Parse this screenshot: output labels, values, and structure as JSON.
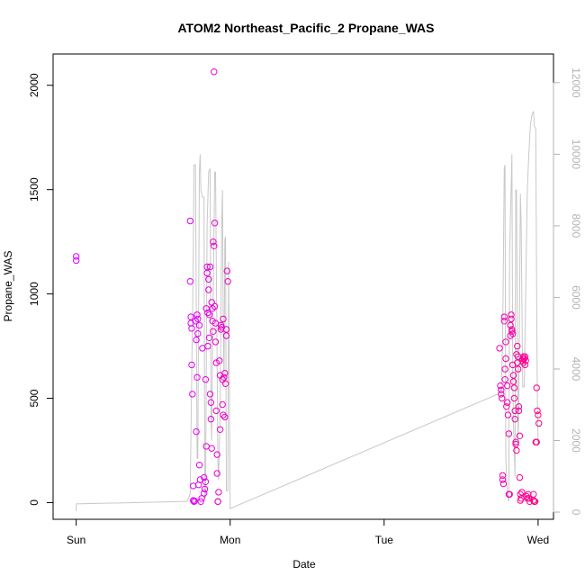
{
  "chart_data": {
    "type": "scatter",
    "title": "ATOM2 Northeast_Pacific_2 Propane_WAS",
    "xlabel": "Date",
    "ylabel": "Propane_WAS",
    "x_ticks": [
      "Sun",
      "Mon",
      "Tue",
      "Wed"
    ],
    "x_range_days": [
      -0.15,
      3.1
    ],
    "y_left": {
      "range": [
        -80,
        2150
      ],
      "ticks": [
        0,
        500,
        1000,
        1500,
        2000
      ]
    },
    "y_right": {
      "range": [
        -200,
        12800
      ],
      "ticks": [
        0,
        2000,
        4000,
        6000,
        8000,
        10000,
        12000
      ],
      "color": "#b3b3b3"
    },
    "series": [
      {
        "kind": "points",
        "axis": "left",
        "color_start": "#e000ff",
        "color_end": "#ff0080",
        "points": [
          [
            0.0,
            1180
          ],
          [
            0.0,
            1160
          ],
          [
            0.74,
            1350
          ],
          [
            0.74,
            1060
          ],
          [
            0.745,
            890
          ],
          [
            0.745,
            860
          ],
          [
            0.75,
            835
          ],
          [
            0.75,
            660
          ],
          [
            0.755,
            520
          ],
          [
            0.76,
            80
          ],
          [
            0.76,
            10
          ],
          [
            0.765,
            5
          ],
          [
            0.77,
            8
          ],
          [
            0.775,
            870
          ],
          [
            0.78,
            340
          ],
          [
            0.78,
            780
          ],
          [
            0.785,
            900
          ],
          [
            0.785,
            600
          ],
          [
            0.79,
            880
          ],
          [
            0.79,
            810
          ],
          [
            0.795,
            85
          ],
          [
            0.8,
            180
          ],
          [
            0.8,
            850
          ],
          [
            0.805,
            110
          ],
          [
            0.81,
            5
          ],
          [
            0.815,
            20
          ],
          [
            0.82,
            740
          ],
          [
            0.83,
            120
          ],
          [
            0.83,
            45
          ],
          [
            0.835,
            65
          ],
          [
            0.84,
            590
          ],
          [
            0.84,
            100
          ],
          [
            0.845,
            930
          ],
          [
            0.845,
            270
          ],
          [
            0.85,
            1130
          ],
          [
            0.85,
            1100
          ],
          [
            0.855,
            910
          ],
          [
            0.855,
            750
          ],
          [
            0.86,
            1070
          ],
          [
            0.86,
            1020
          ],
          [
            0.865,
            900
          ],
          [
            0.865,
            790
          ],
          [
            0.87,
            1130
          ],
          [
            0.87,
            520
          ],
          [
            0.875,
            400
          ],
          [
            0.875,
            480
          ],
          [
            0.88,
            260
          ],
          [
            0.88,
            960
          ],
          [
            0.885,
            930
          ],
          [
            0.885,
            870
          ],
          [
            0.89,
            820
          ],
          [
            0.89,
            1250
          ],
          [
            0.895,
            1230
          ],
          [
            0.895,
            2065
          ],
          [
            0.9,
            1340
          ],
          [
            0.9,
            940
          ],
          [
            0.905,
            860
          ],
          [
            0.905,
            770
          ],
          [
            0.91,
            670
          ],
          [
            0.91,
            440
          ],
          [
            0.915,
            230
          ],
          [
            0.915,
            140
          ],
          [
            0.92,
            5
          ],
          [
            0.92,
            5
          ],
          [
            0.925,
            50
          ],
          [
            0.93,
            680
          ],
          [
            0.935,
            610
          ],
          [
            0.935,
            350
          ],
          [
            0.94,
            830
          ],
          [
            0.94,
            850
          ],
          [
            0.945,
            840
          ],
          [
            0.95,
            590
          ],
          [
            0.95,
            470
          ],
          [
            0.955,
            880
          ],
          [
            0.955,
            420
          ],
          [
            0.96,
            600
          ],
          [
            0.965,
            620
          ],
          [
            0.965,
            410
          ],
          [
            0.97,
            570
          ],
          [
            0.975,
            800
          ],
          [
            0.975,
            830
          ],
          [
            0.98,
            1110
          ],
          [
            0.985,
            1060
          ],
          [
            2.75,
            740
          ],
          [
            2.755,
            560
          ],
          [
            2.76,
            540
          ],
          [
            2.76,
            520
          ],
          [
            2.765,
            500
          ],
          [
            2.77,
            110
          ],
          [
            2.77,
            130
          ],
          [
            2.775,
            90
          ],
          [
            2.78,
            890
          ],
          [
            2.78,
            870
          ],
          [
            2.785,
            640
          ],
          [
            2.785,
            590
          ],
          [
            2.79,
            690
          ],
          [
            2.79,
            770
          ],
          [
            2.795,
            460
          ],
          [
            2.8,
            480
          ],
          [
            2.8,
            560
          ],
          [
            2.805,
            420
          ],
          [
            2.81,
            330
          ],
          [
            2.81,
            40
          ],
          [
            2.815,
            40
          ],
          [
            2.82,
            850
          ],
          [
            2.82,
            800
          ],
          [
            2.825,
            880
          ],
          [
            2.825,
            900
          ],
          [
            2.83,
            830
          ],
          [
            2.83,
            820
          ],
          [
            2.835,
            810
          ],
          [
            2.835,
            660
          ],
          [
            2.84,
            610
          ],
          [
            2.84,
            580
          ],
          [
            2.845,
            550
          ],
          [
            2.845,
            500
          ],
          [
            2.85,
            440
          ],
          [
            2.85,
            400
          ],
          [
            2.855,
            280
          ],
          [
            2.855,
            290
          ],
          [
            2.86,
            250
          ],
          [
            2.86,
            710
          ],
          [
            2.865,
            750
          ],
          [
            2.865,
            670
          ],
          [
            2.87,
            700
          ],
          [
            2.87,
            640
          ],
          [
            2.875,
            460
          ],
          [
            2.875,
            440
          ],
          [
            2.88,
            320
          ],
          [
            2.88,
            120
          ],
          [
            2.885,
            40
          ],
          [
            2.885,
            10
          ],
          [
            2.89,
            20
          ],
          [
            2.895,
            50
          ],
          [
            2.9,
            690
          ],
          [
            2.9,
            680
          ],
          [
            2.905,
            700
          ],
          [
            2.905,
            670
          ],
          [
            2.91,
            690
          ],
          [
            2.915,
            660
          ],
          [
            2.915,
            700
          ],
          [
            2.92,
            680
          ],
          [
            2.925,
            30
          ],
          [
            2.93,
            20
          ],
          [
            2.935,
            40
          ],
          [
            2.94,
            20
          ],
          [
            2.945,
            5
          ],
          [
            2.97,
            40
          ],
          [
            2.97,
            10
          ],
          [
            2.975,
            5
          ],
          [
            2.98,
            5
          ],
          [
            2.985,
            290
          ],
          [
            2.99,
            290
          ],
          [
            2.99,
            550
          ],
          [
            2.995,
            440
          ],
          [
            3.0,
            420
          ],
          [
            3.005,
            380
          ]
        ]
      },
      {
        "kind": "line",
        "axis": "right",
        "color": "#c8c8c8",
        "points": [
          [
            0.0,
            30
          ],
          [
            0.0,
            230
          ],
          [
            0.72,
            300
          ],
          [
            0.74,
            500
          ],
          [
            0.76,
            7000
          ],
          [
            0.765,
            9700
          ],
          [
            0.775,
            9700
          ],
          [
            0.785,
            1500
          ],
          [
            0.79,
            1500
          ],
          [
            0.8,
            9500
          ],
          [
            0.805,
            10000
          ],
          [
            0.81,
            9000
          ],
          [
            0.815,
            8900
          ],
          [
            0.82,
            8800
          ],
          [
            0.83,
            8800
          ],
          [
            0.835,
            400
          ],
          [
            0.84,
            400
          ],
          [
            0.85,
            8000
          ],
          [
            0.86,
            9500
          ],
          [
            0.87,
            9600
          ],
          [
            0.875,
            2800
          ],
          [
            0.88,
            2000
          ],
          [
            0.885,
            4400
          ],
          [
            0.895,
            8000
          ],
          [
            0.9,
            9500
          ],
          [
            0.905,
            9500
          ],
          [
            0.91,
            7000
          ],
          [
            0.92,
            1400
          ],
          [
            0.925,
            900
          ],
          [
            0.935,
            2800
          ],
          [
            0.945,
            8000
          ],
          [
            0.95,
            9000
          ],
          [
            0.955,
            5400
          ],
          [
            0.96,
            3500
          ],
          [
            0.965,
            7600
          ],
          [
            0.97,
            7700
          ],
          [
            0.975,
            600
          ],
          [
            0.985,
            600
          ],
          [
            0.99,
            7000
          ],
          [
            0.995,
            3500
          ],
          [
            1.0,
            500
          ],
          [
            1.0,
            100
          ],
          [
            2.74,
            3300
          ],
          [
            2.76,
            3400
          ],
          [
            2.77,
            4800
          ],
          [
            2.78,
            9600
          ],
          [
            2.785,
            9700
          ],
          [
            2.79,
            1500
          ],
          [
            2.8,
            500
          ],
          [
            2.81,
            300
          ],
          [
            2.815,
            7200
          ],
          [
            2.825,
            9100
          ],
          [
            2.83,
            10000
          ],
          [
            2.835,
            4000
          ],
          [
            2.84,
            2500
          ],
          [
            2.85,
            1000
          ],
          [
            2.855,
            9000
          ],
          [
            2.86,
            9000
          ],
          [
            2.87,
            2000
          ],
          [
            2.875,
            3000
          ],
          [
            2.885,
            8900
          ],
          [
            2.89,
            8000
          ],
          [
            2.9,
            3500
          ],
          [
            2.91,
            3500
          ],
          [
            2.915,
            5000
          ],
          [
            2.93,
            9000
          ],
          [
            2.94,
            10000
          ],
          [
            2.95,
            10800
          ],
          [
            2.96,
            11100
          ],
          [
            2.97,
            11200
          ],
          [
            2.975,
            10800
          ],
          [
            2.985,
            10700
          ],
          [
            2.99,
            6500
          ],
          [
            2.995,
            3200
          ],
          [
            3.0,
            2000
          ]
        ]
      }
    ]
  }
}
